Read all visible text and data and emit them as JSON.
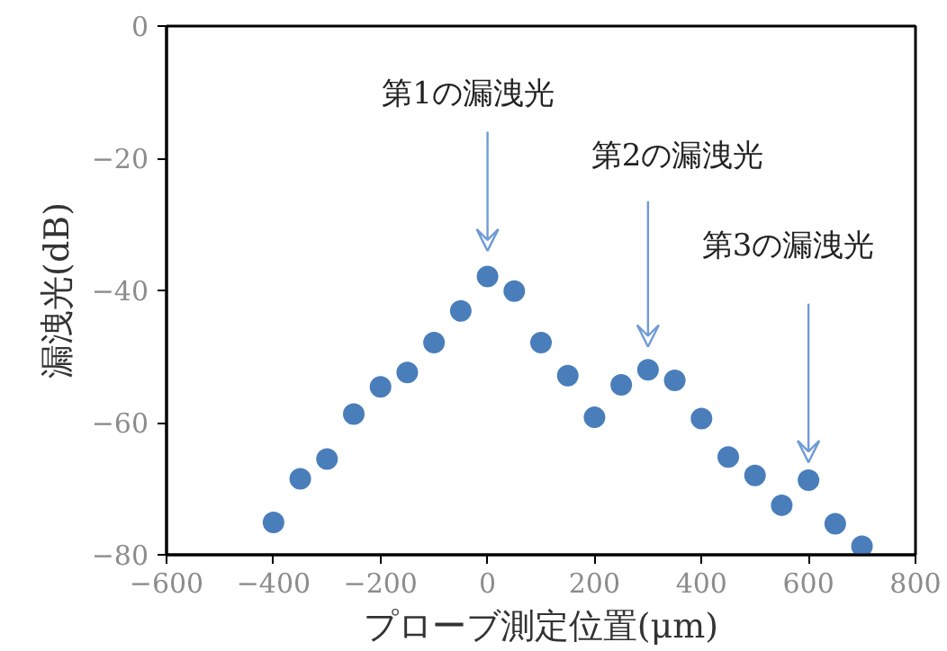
{
  "chart_data": {
    "type": "scatter",
    "xlabel": "プローブ測定位置(μm)",
    "ylabel": "漏洩光(dB)",
    "x": [
      -400,
      -350,
      -300,
      -250,
      -200,
      -150,
      -100,
      -50,
      0,
      50,
      100,
      150,
      200,
      250,
      300,
      350,
      400,
      450,
      500,
      550,
      600,
      650,
      700
    ],
    "series": [
      {
        "color": "#4a7ebb",
        "values": [
          -75.1,
          -68.5,
          -65.5,
          -58.7,
          -54.6,
          -52.4,
          -47.9,
          -43.1,
          -37.9,
          -40.1,
          -47.9,
          -52.9,
          -59.2,
          -54.3,
          -52.0,
          -53.6,
          -59.4,
          -65.2,
          -68.0,
          -72.5,
          -68.7,
          -75.3,
          -78.7
        ]
      }
    ],
    "xlim": [
      -600,
      800
    ],
    "xticks": [
      -600,
      -400,
      -200,
      0,
      200,
      400,
      600,
      800
    ],
    "ylim": [
      -80,
      0
    ],
    "yticks": [
      -80,
      -60,
      -40,
      -20,
      0
    ],
    "annotations": [
      "第1の漏洩光",
      "第2の漏洩光",
      "第3の漏洩光"
    ],
    "grid": false,
    "marker": "circle"
  }
}
